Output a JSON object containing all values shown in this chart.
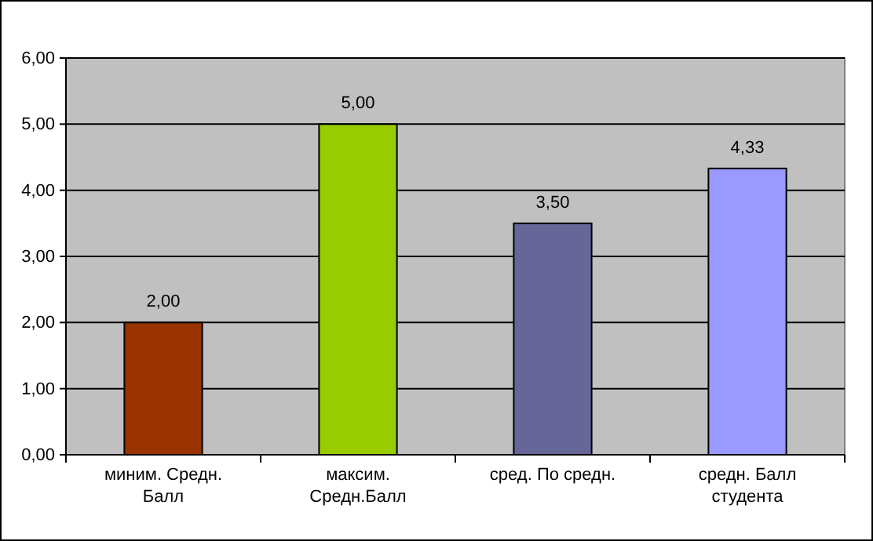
{
  "chart_data": {
    "type": "bar",
    "categories": [
      "миним. Средн. Балл",
      "максим. Средн.Балл",
      "сред. По средн.",
      "средн. Балл студента"
    ],
    "values": [
      2,
      5,
      3.5,
      4.33
    ],
    "colors": [
      "#993300",
      "#99cc00",
      "#666699",
      "#9999ff"
    ],
    "value_labels": [
      "2,00",
      "5,00",
      "3,50",
      "4,33"
    ],
    "ylim": [
      0,
      6
    ],
    "yticks": [
      {
        "value": 0,
        "label": "0,00"
      },
      {
        "value": 1,
        "label": "1,00"
      },
      {
        "value": 2,
        "label": "2,00"
      },
      {
        "value": 3,
        "label": "3,00"
      },
      {
        "value": 4,
        "label": "4,00"
      },
      {
        "value": 5,
        "label": "5,00"
      },
      {
        "value": 6,
        "label": "6,00"
      }
    ],
    "grid": "y"
  }
}
